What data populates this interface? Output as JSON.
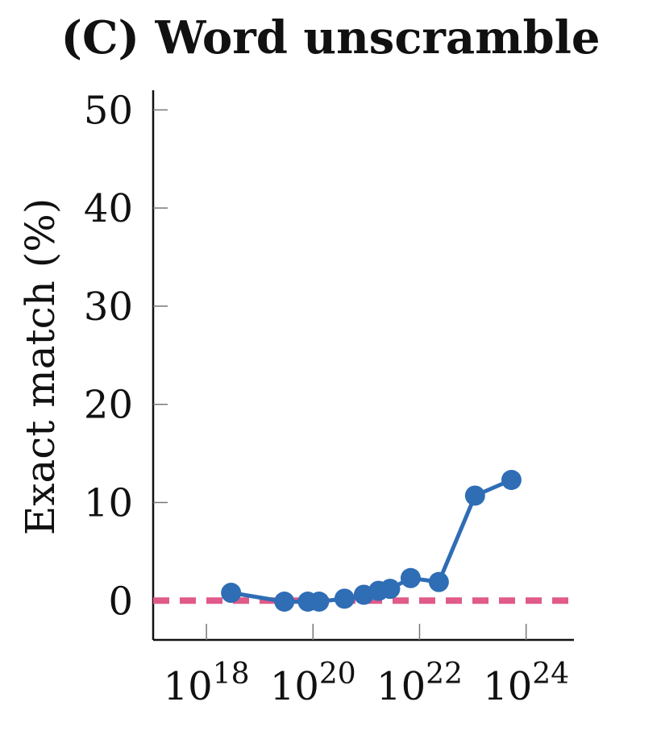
{
  "chart_data": {
    "type": "line",
    "title": "(C) Word unscramble",
    "xlabel": "",
    "ylabel": "Exact match (%)",
    "x_scale": "log",
    "xlim": [
      1e+17,
      7.9e+24
    ],
    "ylim": [
      -4,
      52
    ],
    "y_ticks": [
      0,
      10,
      20,
      30,
      40,
      50
    ],
    "x_ticks": [
      {
        "value": 1e+18,
        "base": "10",
        "exp": "18"
      },
      {
        "value": 1e+20,
        "base": "10",
        "exp": "20"
      },
      {
        "value": 1e+22,
        "base": "10",
        "exp": "22"
      },
      {
        "value": 1e+24,
        "base": "10",
        "exp": "24"
      }
    ],
    "grid": false,
    "series": [
      {
        "color": "#2f6db5",
        "x": [
          2.9e+18,
          2.9e+19,
          8e+19,
          1.3e+20,
          3.9e+20,
          9e+20,
          1.7e+21,
          2.8e+21,
          6.8e+21,
          2.3e+22,
          1.1e+23,
          5.3e+23
        ],
        "y": [
          0.8,
          -0.1,
          -0.1,
          -0.1,
          0.2,
          0.6,
          1.0,
          1.2,
          2.3,
          1.9,
          10.7,
          12.3
        ]
      }
    ],
    "baseline": {
      "y": 0,
      "color": "#e05a8a",
      "style": "dashed"
    }
  }
}
